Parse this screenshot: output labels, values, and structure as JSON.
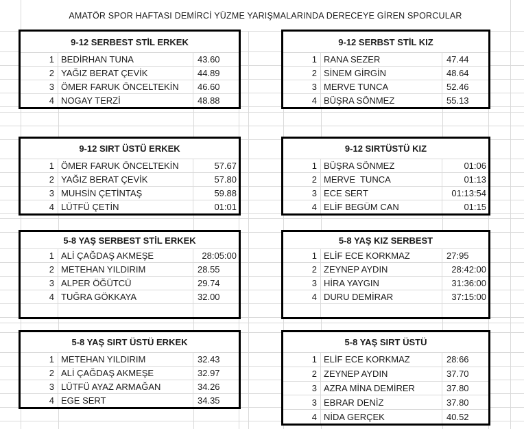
{
  "title": "AMATÖR SPOR HAFTASI DEMİRCİ YÜZME YARIŞMALARINDA DERECEYE GİREN SPORCULAR",
  "colors": {
    "background": "#ffffff",
    "gridline": "#d9d9d9",
    "table_border": "#000000",
    "text": "#1b1b1b"
  },
  "tables": [
    {
      "title": "9-12 SERBEST STİL ERKEK",
      "column": "left",
      "section": 1,
      "trailing_blank_row": false,
      "rows": [
        {
          "rank": "1",
          "name": "BEDİRHAN TUNA",
          "time": "43.60",
          "time_align": "left"
        },
        {
          "rank": "2",
          "name": "YAĞIZ BERAT ÇEVİK",
          "time": "44.89",
          "time_align": "left"
        },
        {
          "rank": "3",
          "name": "ÖMER FARUK ÖNCELTEKİN",
          "time": "46.60",
          "time_align": "left"
        },
        {
          "rank": "4",
          "name": "NOGAY TERZİ",
          "time": "48.88",
          "time_align": "left"
        }
      ]
    },
    {
      "title": "9-12 SERBST STİL KIZ",
      "column": "right",
      "section": 1,
      "trailing_blank_row": false,
      "rows": [
        {
          "rank": "1",
          "name": "RANA SEZER",
          "time": "47.44",
          "time_align": "left"
        },
        {
          "rank": "2",
          "name": "SİNEM GİRGİN",
          "time": "48.64",
          "time_align": "left"
        },
        {
          "rank": "3",
          "name": "MERVE TUNCA",
          "time": "52.46",
          "time_align": "left"
        },
        {
          "rank": "4",
          "name": "BÜŞRA SÖNMEZ",
          "time": "55.13",
          "time_align": "left"
        }
      ]
    },
    {
      "title": "9-12 SIRT ÜSTÜ ERKEK",
      "column": "left",
      "section": 2,
      "trailing_blank_row": false,
      "rows": [
        {
          "rank": "1",
          "name": "ÖMER FARUK ÖNCELTEKİN",
          "time": "57.67",
          "time_align": "right"
        },
        {
          "rank": "2",
          "name": "YAĞIZ BERAT ÇEVİK",
          "time": "57.80",
          "time_align": "right"
        },
        {
          "rank": "3",
          "name": "MUHSİN ÇETİNTAŞ",
          "time": "59.88",
          "time_align": "right"
        },
        {
          "rank": "4",
          "name": "LÜTFÜ ÇETİN",
          "time": "01:01",
          "time_align": "right"
        }
      ]
    },
    {
      "title": "9-12 SIRTÜSTÜ KIZ",
      "column": "right",
      "section": 2,
      "trailing_blank_row": false,
      "rows": [
        {
          "rank": "1",
          "name": "BÜŞRA SÖNMEZ",
          "time": "01:06",
          "time_align": "right"
        },
        {
          "rank": "2",
          "name": "MERVE  TUNCA",
          "time": "01:13",
          "time_align": "right"
        },
        {
          "rank": "3",
          "name": "ECE SERT",
          "time": "01:13:54",
          "time_align": "right"
        },
        {
          "rank": "4",
          "name": "ELİF BEGÜM CAN",
          "time": "01:15",
          "time_align": "right"
        }
      ]
    },
    {
      "title": "5-8 YAŞ SERBEST STİL ERKEK",
      "column": "left",
      "section": 3,
      "trailing_blank_row": true,
      "rows": [
        {
          "rank": "1",
          "name": "ALİ ÇAĞDAŞ AKMEŞE",
          "time": "28:05:00",
          "time_align": "right"
        },
        {
          "rank": "2",
          "name": "METEHAN YILDIRIM",
          "time": "28.55",
          "time_align": "left"
        },
        {
          "rank": "3",
          "name": "ALPER ÖĞÜTCÜ",
          "time": "29.74",
          "time_align": "left"
        },
        {
          "rank": "4",
          "name": "TUĞRA GÖKKAYA",
          "time": "32.00",
          "time_align": "left"
        }
      ]
    },
    {
      "title": "5-8 YAŞ KIZ SERBEST",
      "column": "right",
      "section": 3,
      "trailing_blank_row": true,
      "rows": [
        {
          "rank": "1",
          "name": "ELİF ECE KORKMAZ",
          "time": "27:95",
          "time_align": "left"
        },
        {
          "rank": "2",
          "name": "ZEYNEP AYDIN",
          "time": "28:42:00",
          "time_align": "right"
        },
        {
          "rank": "3",
          "name": "HİRA YAYGIN",
          "time": "31:36:00",
          "time_align": "right"
        },
        {
          "rank": "4",
          "name": "DURU DEMİRAR",
          "time": "37:15:00",
          "time_align": "right"
        }
      ]
    },
    {
      "title": "5-8 YAŞ SIRT ÜSTÜ ERKEK",
      "column": "left",
      "section": 4,
      "trailing_blank_row": false,
      "rows": [
        {
          "rank": "1",
          "name": "METEHAN YILDIRIM",
          "time": "32.43",
          "time_align": "left"
        },
        {
          "rank": "2",
          "name": "ALİ ÇAĞDAŞ AKMEŞE",
          "time": "32.97",
          "time_align": "left"
        },
        {
          "rank": "3",
          "name": "LÜTFÜ AYAZ ARMAĞAN",
          "time": "34.26",
          "time_align": "left"
        },
        {
          "rank": "4",
          "name": "EGE SERT",
          "time": "34.35",
          "time_align": "left"
        }
      ]
    },
    {
      "title": "5-8 YAŞ SIRT ÜSTÜ",
      "column": "right",
      "section": 4,
      "trailing_blank_row": false,
      "rows": [
        {
          "rank": "1",
          "name": "ELİF ECE KORKMAZ",
          "time": "28:66",
          "time_align": "left"
        },
        {
          "rank": "2",
          "name": "ZEYNEP AYDIN",
          "time": "37.70",
          "time_align": "left"
        },
        {
          "rank": "3",
          "name": "AZRA MİNA DEMİRER",
          "time": "37.80",
          "time_align": "left"
        },
        {
          "rank": "3",
          "name": "EBRAR DENİZ",
          "time": "37.80",
          "time_align": "left"
        },
        {
          "rank": "4",
          "name": "NİDA GERÇEK",
          "time": "40.52",
          "time_align": "left"
        }
      ]
    }
  ]
}
